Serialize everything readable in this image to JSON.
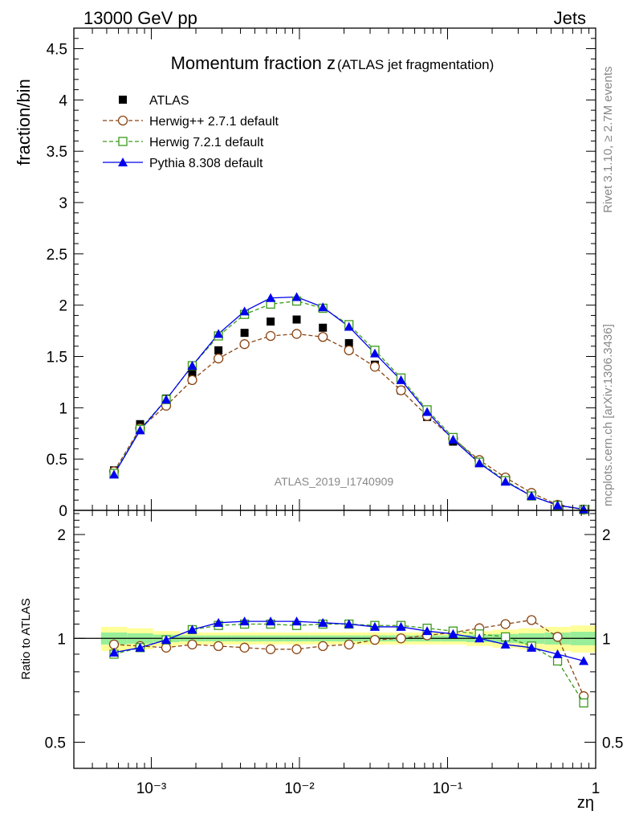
{
  "header": {
    "energy_label": "13000 GeV pp",
    "process_label": "Jets",
    "side_rivet": "Rivet 3.1.10, ≥ 2.7M events",
    "side_mcplots": "mcplots.cern.ch [arXiv:1306.3436]"
  },
  "chart_data": [
    {
      "type": "line",
      "title_main": "Momentum fraction z",
      "title_sub": "(ATLAS jet fragmentation)",
      "ylabel": "fraction/bin",
      "xlabel": "zη",
      "x_scale": "log",
      "xlim": [
        0.0003,
        1
      ],
      "ylim": [
        0,
        4.7
      ],
      "y_ticks": [
        "0",
        "0.5",
        "1",
        "1.5",
        "2",
        "2.5",
        "3",
        "3.5",
        "4",
        "4.5"
      ],
      "x_ticks": [
        "10⁻³",
        "10⁻²",
        "10⁻¹",
        "1"
      ],
      "watermark": "ATLAS_2019_I1740909",
      "legend_position": "top-left",
      "x": [
        0.00056,
        0.00084,
        0.00126,
        0.00189,
        0.00284,
        0.00426,
        0.00639,
        0.00958,
        0.0144,
        0.0216,
        0.0323,
        0.0485,
        0.0728,
        0.109,
        0.164,
        0.246,
        0.369,
        0.553,
        0.83
      ],
      "series": [
        {
          "name": "ATLAS",
          "color": "#000000",
          "marker": "square",
          "values": [
            0.39,
            0.84,
            1.09,
            1.33,
            1.56,
            1.73,
            1.84,
            1.86,
            1.78,
            1.63,
            1.42,
            1.17,
            0.91,
            0.67,
            0.46,
            0.29,
            0.15,
            0.055,
            0.012
          ]
        },
        {
          "name": "Herwig++ 2.7.1 default",
          "color": "#8B4513",
          "marker": "open-circle",
          "dash": "dashed",
          "values": [
            0.38,
            0.8,
            1.02,
            1.27,
            1.48,
            1.62,
            1.7,
            1.72,
            1.69,
            1.56,
            1.4,
            1.17,
            0.92,
            0.7,
            0.49,
            0.32,
            0.17,
            0.055,
            0.008
          ]
        },
        {
          "name": "Herwig 7.2.1 default",
          "color": "#3a9a1a",
          "marker": "open-square",
          "dash": "dashed",
          "values": [
            0.36,
            0.79,
            1.08,
            1.41,
            1.7,
            1.91,
            2.01,
            2.04,
            1.97,
            1.81,
            1.56,
            1.29,
            0.98,
            0.71,
            0.47,
            0.29,
            0.14,
            0.048,
            0.008
          ]
        },
        {
          "name": "Pythia 8.308 default",
          "color": "#0000ee",
          "marker": "filled-triangle",
          "dash": "solid",
          "values": [
            0.35,
            0.78,
            1.08,
            1.41,
            1.72,
            1.94,
            2.07,
            2.08,
            1.98,
            1.79,
            1.53,
            1.27,
            0.96,
            0.69,
            0.46,
            0.28,
            0.14,
            0.05,
            0.011
          ]
        }
      ]
    },
    {
      "type": "line",
      "ylabel": "Ratio to ATLAS",
      "x_scale": "log",
      "y_scale": "log",
      "ylim": [
        0.42,
        2.35
      ],
      "y_ticks": [
        "0.5",
        "1",
        "2"
      ],
      "reference_band": "yellow outer, green inner",
      "x": [
        0.00056,
        0.00084,
        0.00126,
        0.00189,
        0.00284,
        0.00426,
        0.00639,
        0.00958,
        0.0144,
        0.0216,
        0.0323,
        0.0485,
        0.0728,
        0.109,
        0.164,
        0.246,
        0.369,
        0.553,
        0.83
      ],
      "series": [
        {
          "name": "Herwig++ 2.7.1 default",
          "color": "#8B4513",
          "values": [
            0.96,
            0.95,
            0.94,
            0.96,
            0.95,
            0.94,
            0.93,
            0.93,
            0.95,
            0.96,
            0.99,
            1.0,
            1.02,
            1.04,
            1.07,
            1.1,
            1.13,
            1.01,
            0.68
          ]
        },
        {
          "name": "Herwig 7.2.1 default",
          "color": "#3a9a1a",
          "values": [
            0.9,
            0.94,
            0.99,
            1.06,
            1.09,
            1.1,
            1.1,
            1.09,
            1.1,
            1.1,
            1.09,
            1.09,
            1.07,
            1.05,
            1.03,
            1.01,
            0.95,
            0.86,
            0.65
          ]
        },
        {
          "name": "Pythia 8.308 default",
          "color": "#0000ee",
          "values": [
            0.91,
            0.94,
            0.99,
            1.06,
            1.11,
            1.12,
            1.12,
            1.12,
            1.11,
            1.1,
            1.08,
            1.08,
            1.05,
            1.03,
            1.0,
            0.96,
            0.94,
            0.9,
            0.86
          ]
        }
      ]
    }
  ]
}
